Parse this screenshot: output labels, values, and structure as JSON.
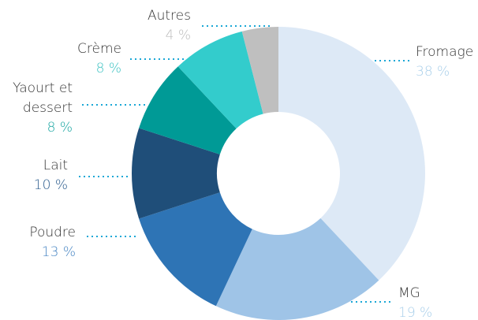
{
  "chart_data": {
    "type": "donut",
    "categories": [
      "Fromage",
      "MG",
      "Poudre",
      "Lait",
      "Yaourt et dessert",
      "Crème",
      "Autres"
    ],
    "values": [
      38,
      19,
      13,
      10,
      8,
      8,
      4
    ],
    "value_labels": [
      "38 %",
      "19 %",
      "13 %",
      "10 %",
      "8 %",
      "8 %",
      "4 %"
    ],
    "colors": [
      "#dde9f6",
      "#9fc4e7",
      "#2e74b5",
      "#1f4e79",
      "#009a96",
      "#33cccc",
      "#bfbfbf"
    ],
    "label_colors": [
      "#a9cfea",
      "#a9cfea",
      "#4a87c4",
      "#2f5f8f",
      "#1aa6a2",
      "#3fc3c3",
      "#bdbdbd"
    ]
  }
}
